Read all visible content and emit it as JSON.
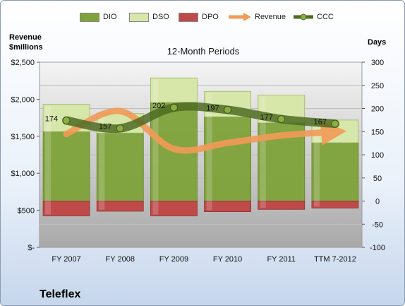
{
  "chart_data": {
    "type": "bar",
    "title": "12-Month Periods",
    "company": "Teleflex",
    "categories": [
      "FY 2007",
      "FY 2008",
      "FY 2009",
      "FY 2010",
      "FY 2011",
      "TTM 7-2012"
    ],
    "left_axis": {
      "label_line1": "Revenue",
      "label_line2": "$millions",
      "min": 0,
      "max": 2500,
      "ticks": [
        0,
        500,
        1000,
        1500,
        2000,
        2500
      ],
      "tick_labels": [
        "$-",
        "$500",
        "$1,000",
        "$1,500",
        "$2,000",
        "$2,500"
      ]
    },
    "right_axis": {
      "label": "Days",
      "min": -100,
      "max": 300,
      "ticks": [
        -100,
        -50,
        0,
        50,
        100,
        150,
        200,
        250,
        300
      ],
      "tick_labels": [
        "-100",
        "-50",
        "0",
        "50",
        "100",
        "150",
        "200",
        "250",
        "300"
      ]
    },
    "series": [
      {
        "name": "DIO",
        "axis": "days",
        "kind": "bar",
        "color": "#7fa33a",
        "values": [
          150,
          147,
          213,
          182,
          169,
          126
        ]
      },
      {
        "name": "DSO",
        "axis": "days",
        "kind": "bar",
        "color": "#d7e6a9",
        "values": [
          59,
          42,
          53,
          55,
          60,
          49
        ]
      },
      {
        "name": "DPO",
        "axis": "days",
        "kind": "bar",
        "color": "#bf4a4a",
        "values": [
          -32,
          -22,
          -32,
          -23,
          -18,
          -15
        ]
      },
      {
        "name": "Revenue",
        "axis": "revenue",
        "kind": "line",
        "color": "#f29b57",
        "values": [
          1530,
          1840,
          1330,
          1410,
          1510,
          1560
        ]
      },
      {
        "name": "CCC",
        "axis": "days",
        "kind": "line",
        "color": "#4f6b22",
        "values": [
          174,
          157,
          202,
          197,
          177,
          167
        ],
        "labels": [
          "174",
          "157",
          "202",
          "197",
          "177",
          "167"
        ]
      }
    ],
    "grid": true,
    "legend_position": "top"
  }
}
